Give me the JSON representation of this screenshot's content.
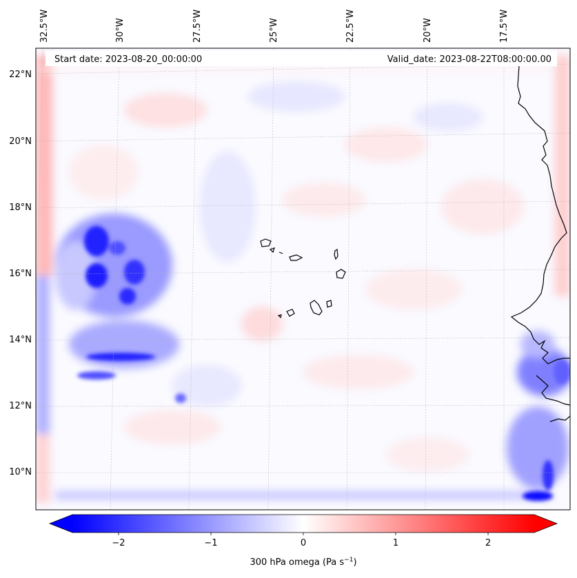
{
  "map": {
    "start_label": "Start date: 2023-08-20_00:00:00",
    "valid_label": "Valid_date: 2023-08-22T08:00:00.00",
    "lon_labels": [
      "32.5°W",
      "30°W",
      "27.5°W",
      "25°W",
      "22.5°W",
      "20°W",
      "17.5°W"
    ],
    "lat_labels": [
      "22°N",
      "20°N",
      "18°N",
      "16°N",
      "14°N",
      "12°N",
      "10°N"
    ],
    "colors": {
      "negative": "#0000ff",
      "zero": "#ffffff",
      "positive": "#ff0000",
      "coastline": "#000000",
      "gridline": "#b0b0b0"
    }
  },
  "colorbar": {
    "tick_labels": [
      "−2",
      "−1",
      "0",
      "1",
      "2"
    ],
    "range": [
      -2.5,
      2.5
    ],
    "label_text": "300 hPa omega (Pa s",
    "label_sup": "−1",
    "label_close": ")"
  }
}
